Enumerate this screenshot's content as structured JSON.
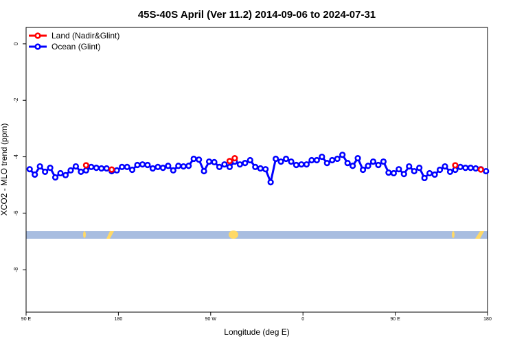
{
  "chart_data": {
    "type": "line",
    "title": "45S-40S April (Ver 11.2)   2014-09-06 to 2024-07-31",
    "x_label": "Longitude (deg E)",
    "y_label": "XCO2 - MLO trend (ppm)",
    "x": [
      93.5,
      98.5,
      103.5,
      108.5,
      113.5,
      118.5,
      123.5,
      128.5,
      133.5,
      138.5,
      143.5,
      148.5,
      153.5,
      158.5,
      163.5,
      168.5,
      173.5,
      178.5,
      183.5,
      188.5,
      193.5,
      198.5,
      203.5,
      208.5,
      213.5,
      218.5,
      223.5,
      228.5,
      233.5,
      238.5,
      243.5,
      248.5,
      253.5,
      258.5,
      263.5,
      268.5,
      273.5,
      278.5,
      283.5,
      288.5,
      293.5,
      298.5,
      303.5,
      308.5,
      313.5,
      318.5,
      323.5,
      328.5,
      333.5,
      338.5,
      343.5,
      348.5,
      353.5,
      358.5,
      363.5,
      368.5,
      373.5,
      378.5,
      383.5,
      388.5,
      393.5,
      398.5,
      403.5,
      408.5,
      413.5,
      418.5,
      423.5,
      428.5,
      433.5,
      438.5,
      443.5,
      448.5,
      453.5,
      458.5,
      463.5,
      468.5,
      473.5,
      478.5,
      483.5,
      488.5,
      493.5,
      498.5,
      503.5,
      508.5,
      513.5,
      518.5,
      523.5,
      528.5,
      533.5,
      538.5
    ],
    "series": [
      {
        "name": "Land (Nadir&Glint)",
        "color": "#ff0000",
        "values": [
          null,
          null,
          null,
          null,
          null,
          null,
          null,
          null,
          null,
          null,
          null,
          -4.3,
          null,
          null,
          null,
          null,
          -4.45,
          null,
          null,
          null,
          null,
          null,
          null,
          null,
          null,
          null,
          null,
          null,
          null,
          null,
          null,
          null,
          null,
          null,
          null,
          null,
          null,
          null,
          null,
          -4.15,
          -4.05,
          null,
          null,
          null,
          null,
          null,
          null,
          null,
          null,
          null,
          null,
          null,
          null,
          null,
          null,
          null,
          null,
          null,
          null,
          null,
          null,
          null,
          null,
          null,
          null,
          null,
          null,
          null,
          null,
          null,
          null,
          null,
          null,
          null,
          null,
          null,
          null,
          null,
          null,
          null,
          null,
          null,
          null,
          -4.3,
          null,
          null,
          null,
          null,
          -4.45,
          null
        ]
      },
      {
        "name": "Ocean (Glint)",
        "color": "#0000ff",
        "values": [
          -4.44,
          -4.63,
          -4.34,
          -4.53,
          -4.39,
          -4.73,
          -4.58,
          -4.65,
          -4.48,
          -4.34,
          -4.53,
          -4.48,
          -4.36,
          -4.39,
          -4.41,
          -4.41,
          -4.51,
          -4.48,
          -4.36,
          -4.36,
          -4.46,
          -4.29,
          -4.27,
          -4.29,
          -4.41,
          -4.36,
          -4.39,
          -4.32,
          -4.48,
          -4.32,
          -4.34,
          -4.32,
          -4.07,
          -4.1,
          -4.51,
          -4.17,
          -4.19,
          -4.36,
          -4.27,
          -4.36,
          -4.17,
          -4.27,
          -4.22,
          -4.12,
          -4.36,
          -4.41,
          -4.44,
          -4.9,
          -4.07,
          -4.17,
          -4.07,
          -4.17,
          -4.29,
          -4.27,
          -4.27,
          -4.12,
          -4.12,
          -4.0,
          -4.22,
          -4.12,
          -4.07,
          -3.93,
          -4.22,
          -4.32,
          -4.05,
          -4.46,
          -4.32,
          -4.17,
          -4.29,
          -4.17,
          -4.56,
          -4.58,
          -4.44,
          -4.61,
          -4.34,
          -4.51,
          -4.39,
          -4.75,
          -4.58,
          -4.63,
          -4.46,
          -4.34,
          -4.53,
          -4.46,
          -4.36,
          -4.39,
          -4.39,
          -4.41,
          -4.44,
          -4.51
        ]
      }
    ],
    "xlim": [
      90,
      540
    ],
    "xticks": [
      {
        "value": 90,
        "label": "90 E"
      },
      180,
      {
        "value": 270,
        "label": "90 W"
      },
      {
        "value": 360,
        "label": "0"
      },
      {
        "value": 450,
        "label": "90 E"
      },
      {
        "value": 540,
        "label": "180"
      }
    ],
    "ylim": [
      -9.5,
      0.58
    ],
    "yticks": [
      0,
      -2,
      -4,
      -6,
      -8
    ],
    "legend": "top-left"
  }
}
